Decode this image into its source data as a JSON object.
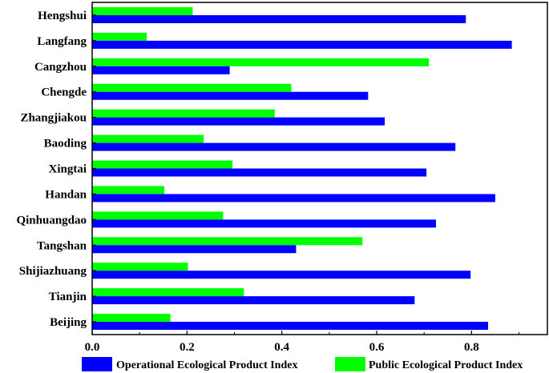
{
  "chart_data": {
    "type": "bar",
    "orientation": "horizontal",
    "title": "",
    "xlabel": "",
    "ylabel": "",
    "xlim": [
      0,
      0.96
    ],
    "xticks": [
      "0.0",
      "0.2",
      "0.4",
      "0.6",
      "0.8"
    ],
    "grid": false,
    "legend_position": "bottom",
    "categories": [
      "Hengshui",
      "Langfang",
      "Cangzhou",
      "Chengde",
      "Zhangjiakou",
      "Baoding",
      "Xingtai",
      "Handan",
      "Qinhuangdao",
      "Tangshan",
      "Shijiazhuang",
      "Tianjin",
      "Beijing"
    ],
    "series": [
      {
        "name": "Public Ecological Product Index",
        "color": "#00ff00",
        "values": [
          0.212,
          0.115,
          0.71,
          0.42,
          0.385,
          0.235,
          0.296,
          0.152,
          0.276,
          0.57,
          0.202,
          0.32,
          0.165
        ]
      },
      {
        "name": "Operational Ecological Product Index",
        "color": "#0000ff",
        "values": [
          0.788,
          0.885,
          0.29,
          0.582,
          0.617,
          0.766,
          0.705,
          0.85,
          0.725,
          0.43,
          0.798,
          0.68,
          0.835
        ]
      }
    ]
  }
}
